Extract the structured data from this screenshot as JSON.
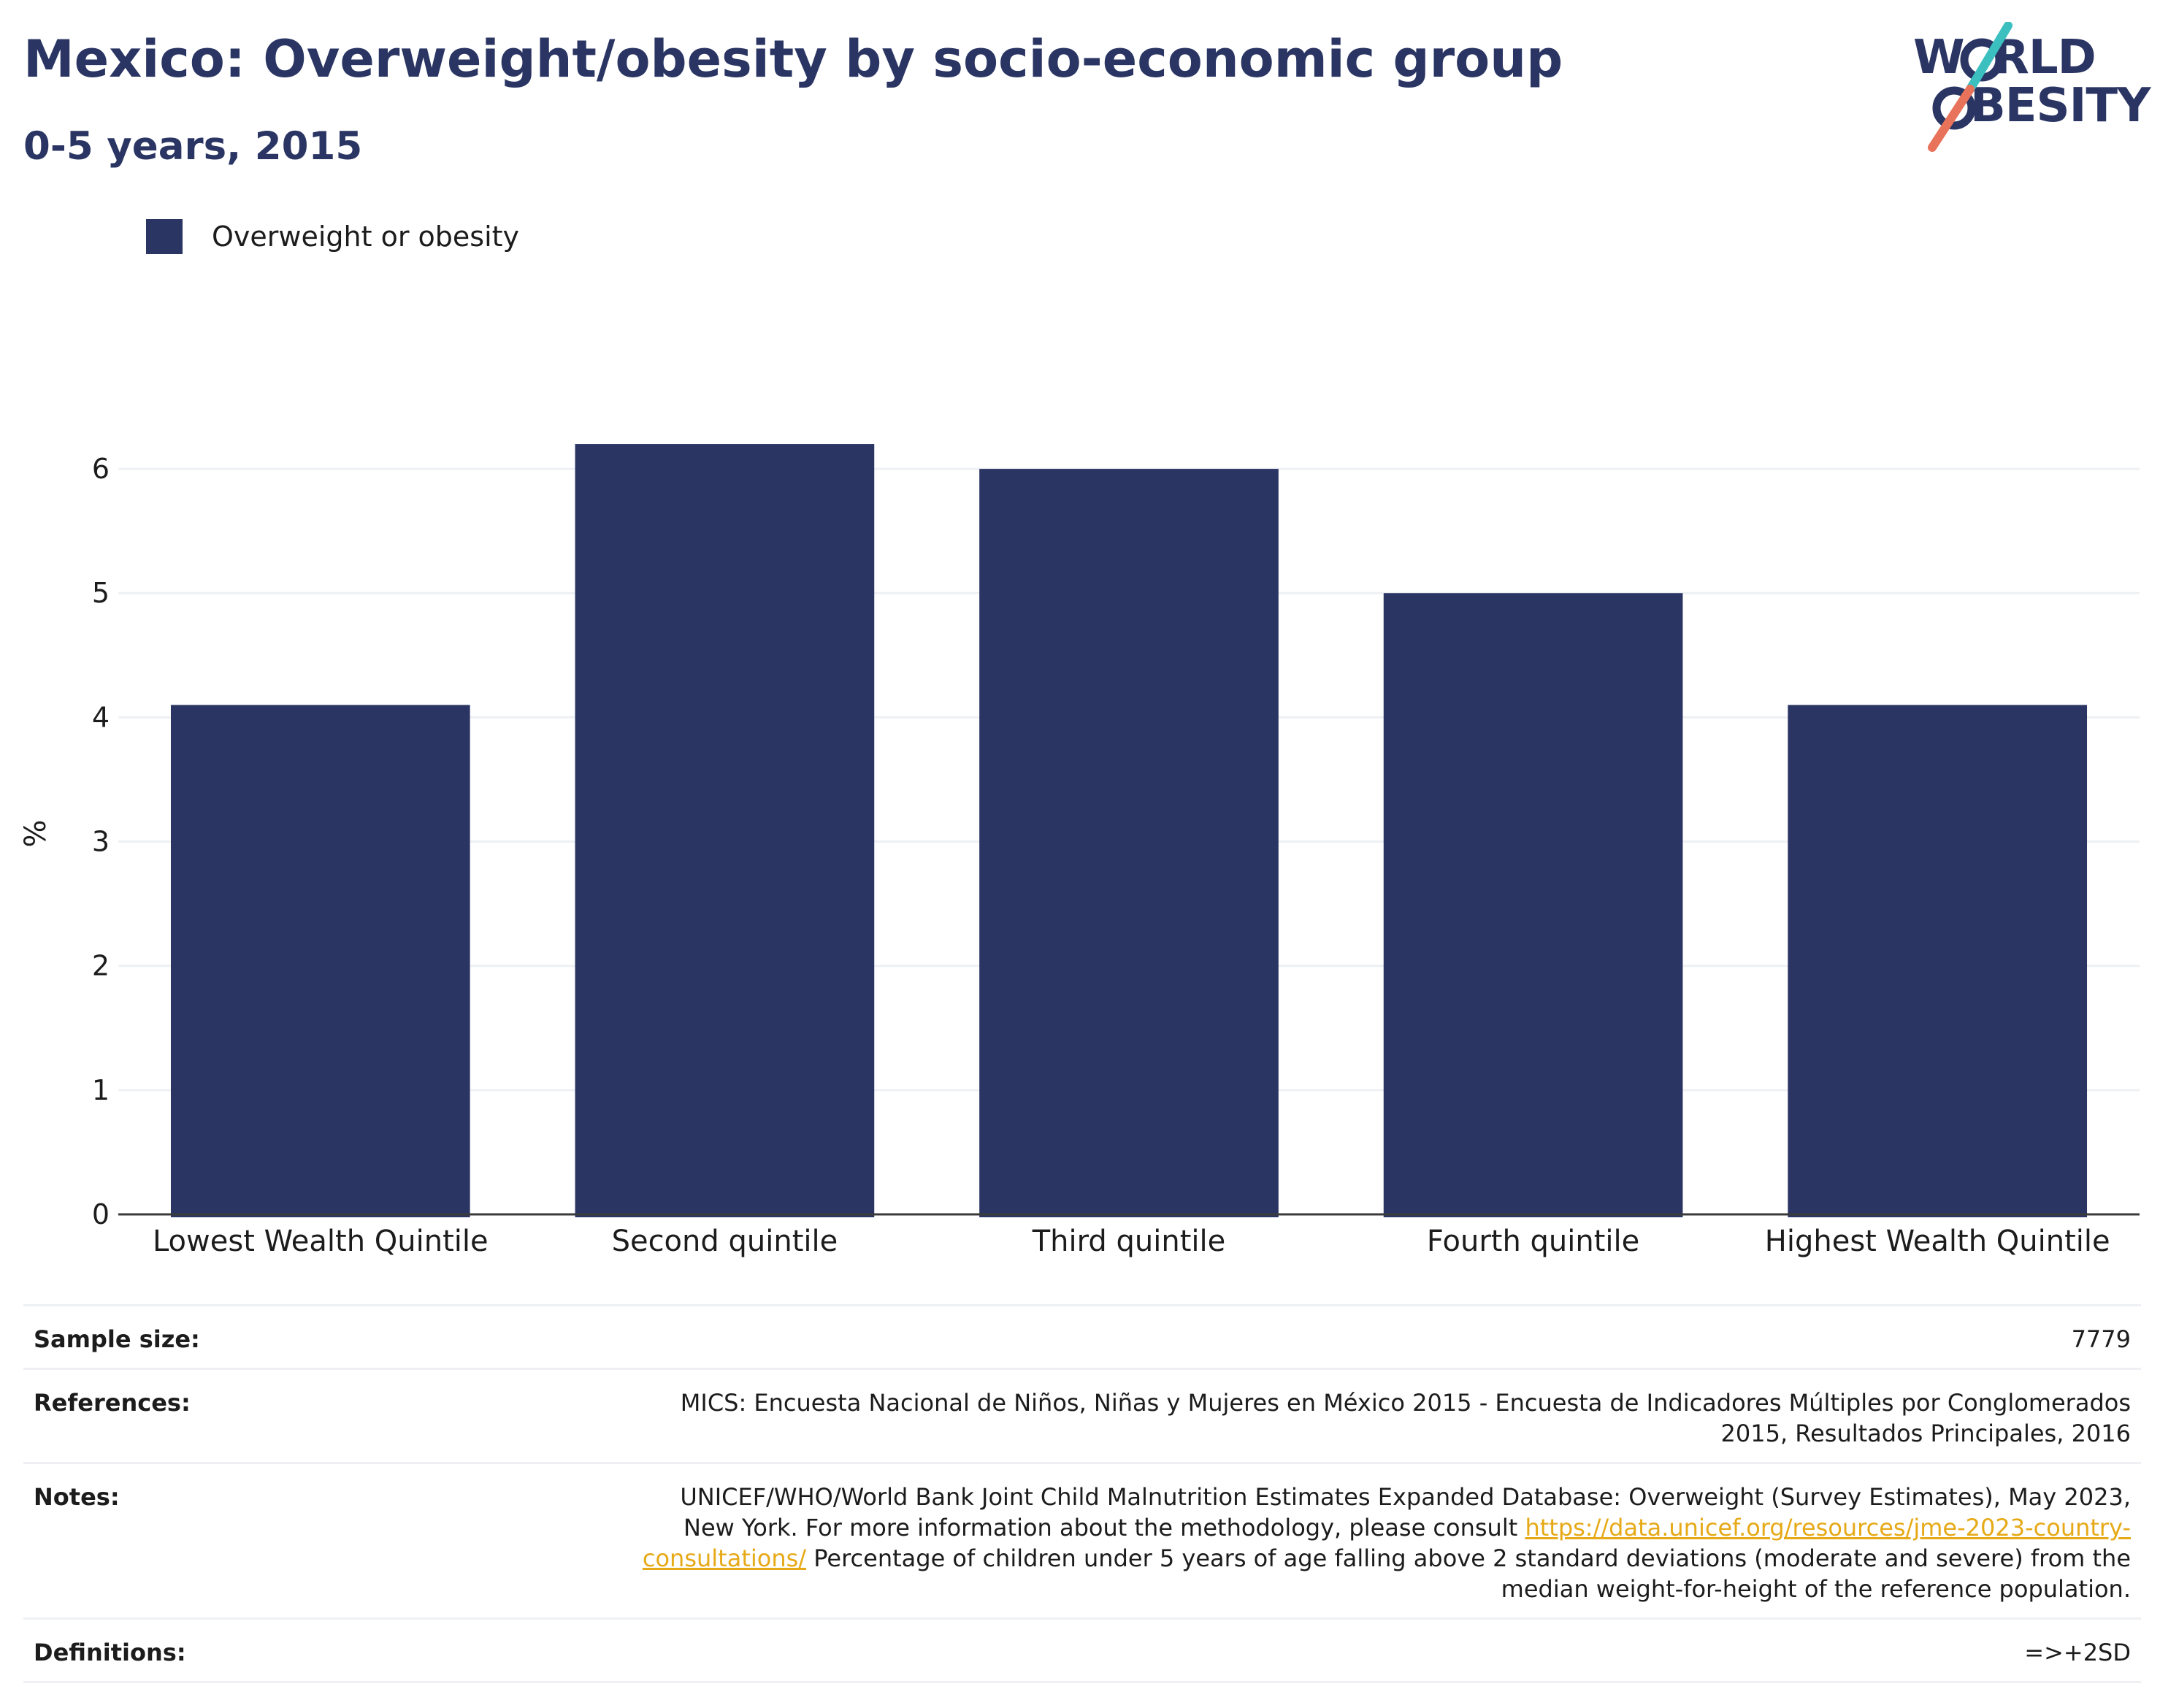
{
  "header": {
    "title": "Mexico: Overweight/obesity by socio-economic group",
    "subtitle": "0-5 years, 2015"
  },
  "logo": {
    "line1": "WORLD",
    "line2": "OBESITY",
    "line1_after": "RLD",
    "line1_before": "W",
    "line2_after": "BESITY"
  },
  "colors": {
    "bar": "#2a3563",
    "grid": "#eef0f4",
    "axis": "#3a3a3a",
    "logo_text": "#2a3563",
    "logo_slash_top": "#3bbfbf",
    "logo_slash_bottom": "#e8735a",
    "link": "#e6a917"
  },
  "chart_data": {
    "type": "bar",
    "categories": [
      "Lowest Wealth Quintile",
      "Second quintile",
      "Third quintile",
      "Fourth quintile",
      "Highest Wealth Quintile"
    ],
    "series": [
      {
        "name": "Overweight or obesity",
        "values": [
          4.1,
          6.2,
          6.0,
          5.0,
          4.1
        ]
      }
    ],
    "ylabel": "%",
    "ylim": [
      0,
      6.6
    ],
    "yticks": [
      0,
      1,
      2,
      3,
      4,
      5,
      6
    ],
    "grid": true,
    "legend_position": "top-left"
  },
  "info": {
    "sample_size_label": "Sample size:",
    "sample_size_value": "7779",
    "references_label": "References:",
    "references_value": "MICS: Encuesta Nacional de Niños, Niñas y Mujeres en México 2015 - Encuesta de Indicadores Múltiples por Conglomerados 2015, Resultados Principales, 2016",
    "notes_label": "Notes:",
    "notes_text_1": "UNICEF/WHO/World Bank Joint Child Malnutrition Estimates Expanded Database: Overweight (Survey Estimates), May 2023, New York. For more information about the methodology, please consult ",
    "notes_link": "https://data.unicef.org/resources/jme-2023-country-consultations/",
    "notes_text_2": " Percentage of children under 5 years of age falling above 2 standard deviations (moderate and severe) from the median weight-for-height of the reference population.",
    "definitions_label": "Definitions:",
    "definitions_value": "=>+2SD"
  }
}
